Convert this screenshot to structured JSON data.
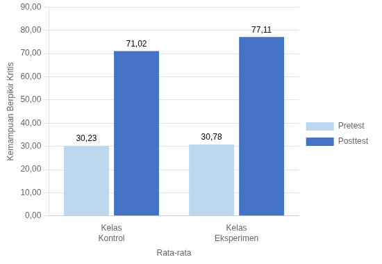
{
  "chart_data": {
    "type": "bar",
    "categories": [
      "Kelas\nKontrol",
      "Kelas\nEksperimen"
    ],
    "series": [
      {
        "name": "Pretest",
        "color": "#BDD7EE",
        "values": [
          30.23,
          30.78
        ],
        "value_labels": [
          "30,23",
          "30,78"
        ]
      },
      {
        "name": "Posttest",
        "color": "#4472C4",
        "values": [
          71.02,
          77.11
        ],
        "value_labels": [
          "71,02",
          "77,11"
        ]
      }
    ],
    "xlabel": "Rata-rata",
    "ylabel": "Kemampuan Berpikir Kritis",
    "ylim": [
      0,
      90
    ],
    "yticks": [
      {
        "value": 0,
        "label": "0,00"
      },
      {
        "value": 10,
        "label": "10,00"
      },
      {
        "value": 20,
        "label": "20,00"
      },
      {
        "value": 30,
        "label": "30,00"
      },
      {
        "value": 40,
        "label": "40,00"
      },
      {
        "value": 50,
        "label": "50,00"
      },
      {
        "value": 60,
        "label": "60,00"
      },
      {
        "value": 70,
        "label": "70,00"
      },
      {
        "value": 80,
        "label": "80,00"
      },
      {
        "value": 90,
        "label": "90,00"
      }
    ],
    "grid": true,
    "legend": "right",
    "data_labels": true
  }
}
